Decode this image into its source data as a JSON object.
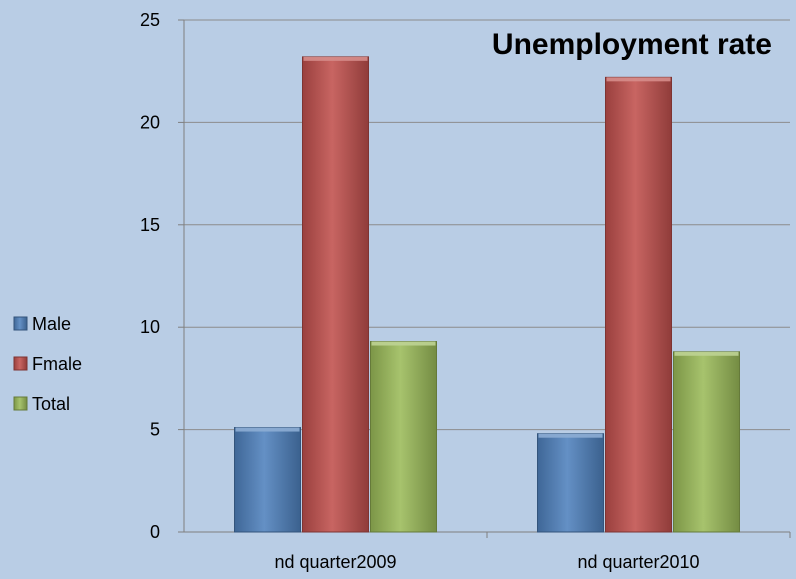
{
  "chart_data": {
    "type": "bar",
    "title": "Unemployment rate",
    "categories": [
      "nd quarter2009",
      "nd quarter2010"
    ],
    "series": [
      {
        "name": "Male",
        "values": [
          5.1,
          4.8
        ],
        "color": "#4f81bd"
      },
      {
        "name": "Fmale",
        "values": [
          23.2,
          22.2
        ],
        "color": "#c0504d"
      },
      {
        "name": "Total",
        "values": [
          9.3,
          8.8
        ],
        "color": "#9bbb59"
      }
    ],
    "ylim": [
      0,
      25
    ],
    "yticks": [
      0,
      5,
      10,
      15,
      20,
      25
    ],
    "grid": true,
    "legend_position": "left"
  }
}
